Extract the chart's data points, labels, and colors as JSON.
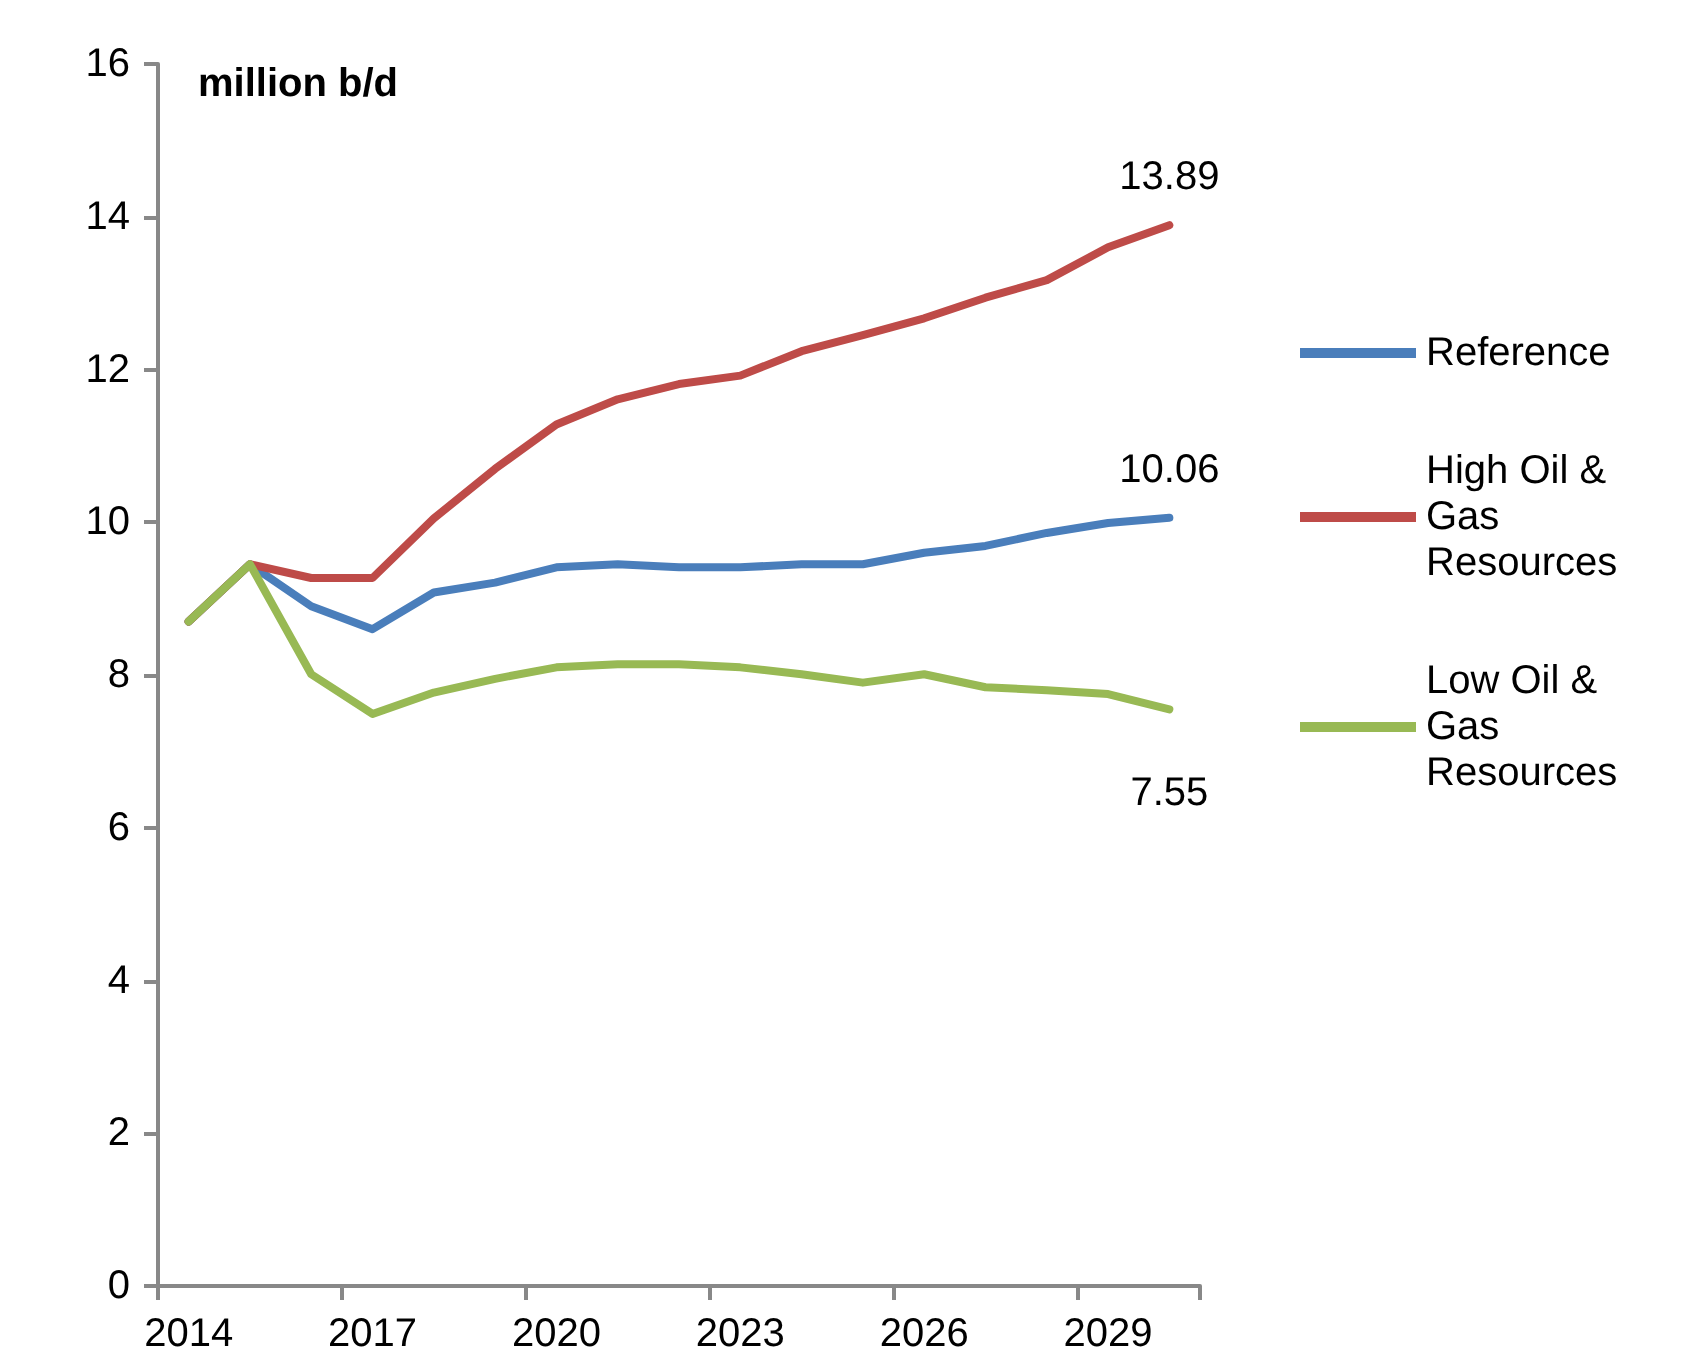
{
  "chart_data": {
    "type": "line",
    "ylabel": "million b/d",
    "categories": [
      "2014",
      null,
      null,
      "2017",
      null,
      null,
      "2020",
      null,
      null,
      "2023",
      null,
      null,
      "2026",
      null,
      null,
      "2029",
      null
    ],
    "series": [
      {
        "name": "Reference",
        "color": "#4a7ebb",
        "values": [
          8.7,
          9.45,
          8.9,
          8.6,
          9.08,
          9.21,
          9.41,
          9.45,
          9.41,
          9.41,
          9.45,
          9.45,
          9.6,
          9.69,
          9.86,
          9.99,
          10.06
        ],
        "value_labels": [
          null,
          null,
          null,
          null,
          null,
          null,
          null,
          null,
          null,
          null,
          null,
          null,
          null,
          null,
          null,
          null,
          "10.06"
        ]
      },
      {
        "name": "High Oil & Gas Resources",
        "color": "#be4b48",
        "values": [
          8.7,
          9.45,
          9.27,
          9.27,
          10.05,
          10.7,
          11.28,
          11.61,
          11.81,
          11.92,
          12.24,
          12.45,
          12.67,
          12.94,
          13.17,
          13.6,
          13.89
        ],
        "value_labels": [
          null,
          null,
          null,
          null,
          null,
          null,
          null,
          null,
          null,
          null,
          null,
          null,
          null,
          null,
          null,
          null,
          "13.89"
        ]
      },
      {
        "name": "Low Oil & Gas Resources",
        "color": "#98b954",
        "values": [
          8.7,
          9.45,
          8.01,
          7.49,
          7.77,
          7.95,
          8.1,
          8.14,
          8.14,
          8.1,
          8.01,
          7.9,
          8.01,
          7.84,
          7.8,
          7.75,
          7.55
        ],
        "value_labels": [
          null,
          null,
          null,
          null,
          null,
          null,
          null,
          null,
          null,
          null,
          null,
          null,
          null,
          null,
          null,
          null,
          "7.55"
        ]
      }
    ],
    "ylim": [
      0,
      16
    ],
    "yticks": [
      0,
      2,
      4,
      6,
      8,
      10,
      12,
      14,
      16
    ],
    "grid": false,
    "legend": "right",
    "marker": "none",
    "line_style": "solid"
  }
}
